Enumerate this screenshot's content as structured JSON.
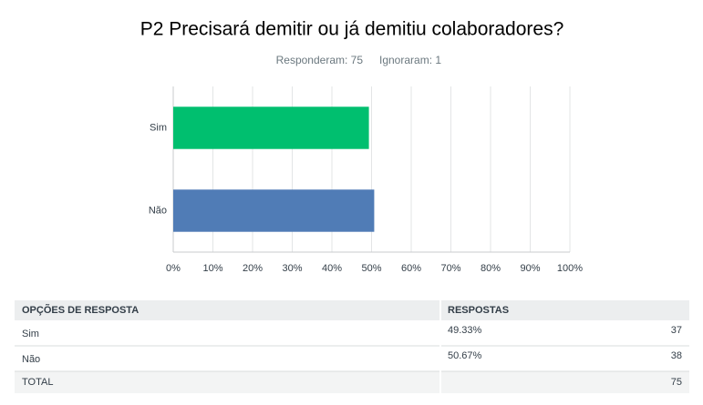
{
  "chart_data": {
    "type": "hbar",
    "title": "P2 Precisará demitir ou já demitiu colaboradores?",
    "subtitle": [
      "Responderam: 75",
      "Ignoraram: 1"
    ],
    "categories": [
      "Sim",
      "Não"
    ],
    "values": [
      49.33,
      50.67
    ],
    "colors": [
      "#00bf6f",
      "#507cb6"
    ],
    "xlim": [
      0,
      100
    ],
    "xticks": [
      {
        "value": 0,
        "label": "0%"
      },
      {
        "value": 10,
        "label": "10%"
      },
      {
        "value": 20,
        "label": "20%"
      },
      {
        "value": 30,
        "label": "30%"
      },
      {
        "value": 40,
        "label": "40%"
      },
      {
        "value": 50,
        "label": "50%"
      },
      {
        "value": 60,
        "label": "60%"
      },
      {
        "value": 70,
        "label": "70%"
      },
      {
        "value": 80,
        "label": "80%"
      },
      {
        "value": 90,
        "label": "90%"
      },
      {
        "value": 100,
        "label": "100%"
      }
    ],
    "grid": true
  },
  "table": {
    "headers": [
      "OPÇÕES DE RESPOSTA",
      "RESPOSTAS"
    ],
    "rows": [
      [
        "Sim",
        "49.33%",
        37
      ],
      [
        "Não",
        "50.67%",
        38
      ]
    ],
    "total": {
      "label": "TOTAL",
      "count": 75
    }
  }
}
